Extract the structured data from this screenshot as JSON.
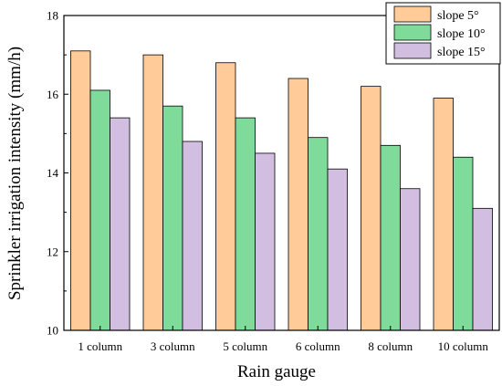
{
  "chart_data": {
    "type": "bar",
    "xlabel": "Rain gauge",
    "ylabel": "Sprinkler irrigation intensity (mm/h)",
    "categories": [
      "1 column",
      "3 column",
      "5 column",
      "6 column",
      "8 column",
      "10 column"
    ],
    "series": [
      {
        "name": "slope 5°",
        "color": "#FFCC99",
        "values": [
          17.1,
          17.0,
          16.8,
          16.4,
          16.2,
          15.9
        ]
      },
      {
        "name": "slope 10°",
        "color": "#7FDB9A",
        "values": [
          16.1,
          15.7,
          15.4,
          14.9,
          14.7,
          14.4
        ]
      },
      {
        "name": "slope 15°",
        "color": "#D2BEE0",
        "values": [
          15.4,
          14.8,
          14.5,
          14.1,
          13.6,
          13.1
        ]
      }
    ],
    "ylim": [
      10,
      18
    ],
    "yticks": [
      "10",
      "12",
      "14",
      "16",
      "18"
    ],
    "grid": false,
    "legend_position": "top-right"
  }
}
